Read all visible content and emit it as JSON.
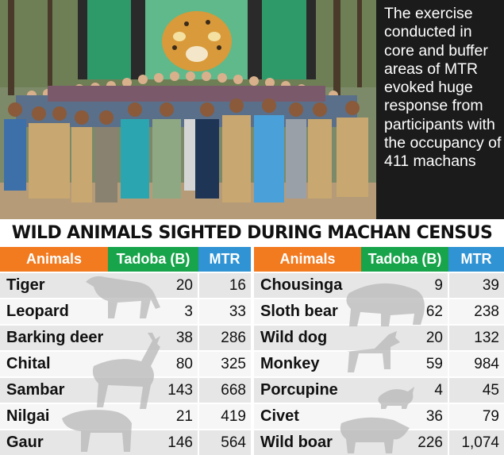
{
  "caption": "The exercise conducted in core and buffer areas of MTR evoked huge response from participants with the occupancy of 411 machans",
  "headline": "WILD ANIMALS SIGHTED DURING MACHAN CENSUS",
  "columns": {
    "animals": "Animals",
    "tadoba": "Tadoba (B)",
    "mtr": "MTR"
  },
  "left_rows": [
    {
      "animal": "Tiger",
      "tadoba": "20",
      "mtr": "16"
    },
    {
      "animal": "Leopard",
      "tadoba": "3",
      "mtr": "33"
    },
    {
      "animal": "Barking deer",
      "tadoba": "38",
      "mtr": "286"
    },
    {
      "animal": "Chital",
      "tadoba": "80",
      "mtr": "325"
    },
    {
      "animal": "Sambar",
      "tadoba": "143",
      "mtr": "668"
    },
    {
      "animal": "Nilgai",
      "tadoba": "21",
      "mtr": "419"
    },
    {
      "animal": "Gaur",
      "tadoba": "146",
      "mtr": "564"
    }
  ],
  "right_rows": [
    {
      "animal": "Chousinga",
      "tadoba": "9",
      "mtr": "39"
    },
    {
      "animal": "Sloth bear",
      "tadoba": "62",
      "mtr": "238"
    },
    {
      "animal": "Wild dog",
      "tadoba": "20",
      "mtr": "132"
    },
    {
      "animal": "Monkey",
      "tadoba": "59",
      "mtr": "984"
    },
    {
      "animal": "Porcupine",
      "tadoba": "4",
      "mtr": "45"
    },
    {
      "animal": "Civet",
      "tadoba": "36",
      "mtr": "79"
    },
    {
      "animal": "Wild boar",
      "tadoba": "226",
      "mtr": "1,074"
    }
  ],
  "colors": {
    "animals_header": "#f27a1f",
    "tadoba_header": "#17a44a",
    "mtr_header": "#2f93d4",
    "caption_bg": "#1b1b1b"
  }
}
